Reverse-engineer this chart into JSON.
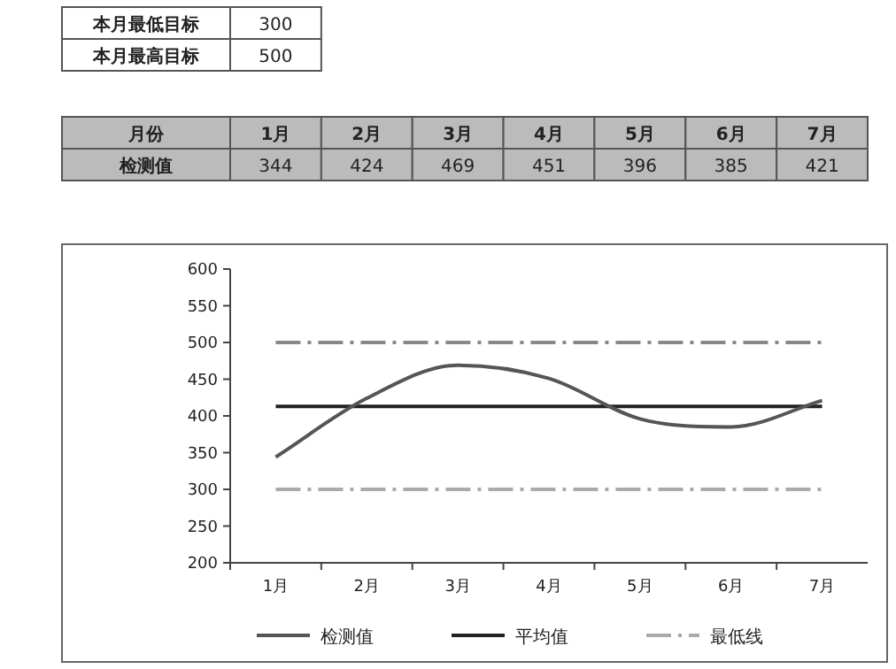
{
  "chart_data": {
    "type": "line",
    "categories": [
      "1月",
      "2月",
      "3月",
      "4月",
      "5月",
      "6月",
      "7月"
    ],
    "series": [
      {
        "name": "检测值",
        "color": "#555555",
        "values": [
          344,
          424,
          469,
          451,
          396,
          385,
          421
        ],
        "value_labels": [
          "344",
          "424",
          "469",
          "451",
          "396",
          "385",
          "421"
        ]
      },
      {
        "name": "平均值",
        "color": "#222222",
        "values": [
          413,
          413,
          413,
          413,
          413,
          413,
          413
        ]
      },
      {
        "name": "最低线",
        "color": "#aaaaaa",
        "line_style": "dashed",
        "values": [
          300,
          300,
          300,
          300,
          300,
          300,
          300
        ]
      },
      {
        "color": "#888888",
        "line_style": "dashed",
        "values": [
          500,
          500,
          500,
          500,
          500,
          500,
          500
        ]
      }
    ],
    "ylim": [
      200,
      600
    ],
    "yticks": [
      200,
      250,
      300,
      350,
      400,
      450,
      500,
      550,
      600
    ],
    "legend": "bottom",
    "marker": "none",
    "annotations": [
      "本月最低目标",
      "300",
      "本月最高目标",
      "500",
      "月份"
    ]
  }
}
